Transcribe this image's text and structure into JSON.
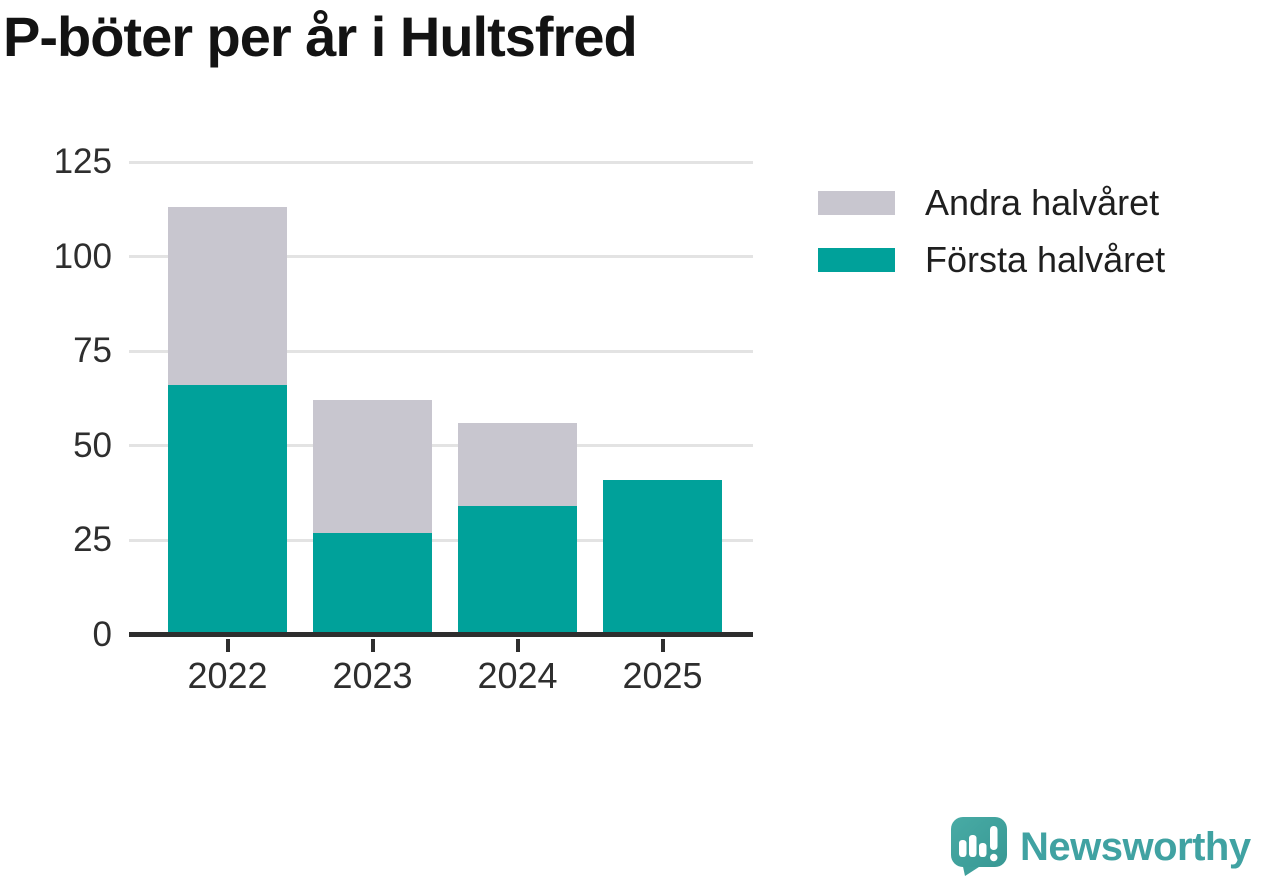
{
  "title": "P-böter per år i Hultsfred",
  "legend": [
    {
      "label": "Andra halvåret",
      "color": "#c8c6cf"
    },
    {
      "label": "Första halvåret",
      "color": "#00a19a"
    }
  ],
  "branding": {
    "logo_text": "Newsworthy",
    "logo_color": "#40a2a2",
    "logo_bubble_color_start": "#48aba5",
    "logo_bubble_color_end": "#389894"
  },
  "chart_data": {
    "type": "bar",
    "stacked": true,
    "title": "P-böter per år i Hultsfred",
    "categories": [
      "2022",
      "2023",
      "2024",
      "2025"
    ],
    "series": [
      {
        "name": "Första halvåret",
        "color": "#00a19a",
        "values": [
          66,
          27,
          34,
          41
        ]
      },
      {
        "name": "Andra halvåret",
        "color": "#c8c6cf",
        "values": [
          47,
          35,
          22,
          0
        ]
      }
    ],
    "totals": [
      113,
      62,
      56,
      41
    ],
    "xlabel": "",
    "ylabel": "",
    "ylim": [
      0,
      125
    ],
    "yticks": [
      0,
      25,
      50,
      75,
      100,
      125
    ],
    "grid": true,
    "legend_position": "right"
  }
}
